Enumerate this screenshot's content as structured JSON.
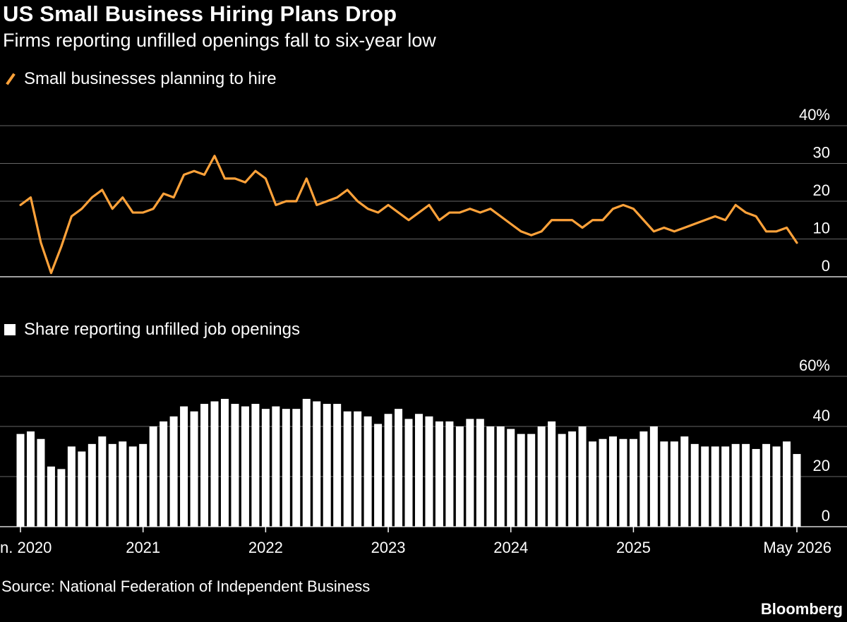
{
  "title": "US Small Business Hiring Plans Drop",
  "subtitle": "Firms reporting unfilled openings fall to six-year low",
  "source": "Source: National Federation of Independent Business",
  "brand": "Bloomberg",
  "colors": {
    "background": "#000000",
    "line": "#ffa23a",
    "bars": "#ffffff",
    "grid": "#666666"
  },
  "chart_data": [
    {
      "type": "line",
      "legend": "Small businesses planning to hire",
      "legend_icon": "line-swatch-icon",
      "unit": "%",
      "ylim": [
        0,
        40
      ],
      "y_ticks": [
        0,
        10,
        20,
        30,
        40
      ],
      "y_tick_labels": [
        "0",
        "10",
        "20",
        "30",
        "40%"
      ],
      "grid": true,
      "x_range": [
        "2020-01",
        "2026-05"
      ],
      "x": [
        "2020-01",
        "2020-02",
        "2020-03",
        "2020-04",
        "2020-05",
        "2020-06",
        "2020-07",
        "2020-08",
        "2020-09",
        "2020-10",
        "2020-11",
        "2020-12",
        "2021-01",
        "2021-02",
        "2021-03",
        "2021-04",
        "2021-05",
        "2021-06",
        "2021-07",
        "2021-08",
        "2021-09",
        "2021-10",
        "2021-11",
        "2021-12",
        "2022-01",
        "2022-02",
        "2022-03",
        "2022-04",
        "2022-05",
        "2022-06",
        "2022-07",
        "2022-08",
        "2022-09",
        "2022-10",
        "2022-11",
        "2022-12",
        "2023-01",
        "2023-02",
        "2023-03",
        "2023-04",
        "2023-05",
        "2023-06",
        "2023-07",
        "2023-08",
        "2023-09",
        "2023-10",
        "2023-11",
        "2023-12",
        "2024-01",
        "2024-02",
        "2024-03",
        "2024-04",
        "2024-05",
        "2024-06",
        "2024-07",
        "2024-08",
        "2024-09",
        "2024-10",
        "2024-11",
        "2024-12",
        "2025-01",
        "2025-02",
        "2025-03",
        "2025-04",
        "2025-05",
        "2025-06",
        "2025-07",
        "2025-08",
        "2025-09",
        "2025-10",
        "2025-11",
        "2025-12",
        "2026-01",
        "2026-02",
        "2026-03",
        "2026-04",
        "2026-05"
      ],
      "values": [
        19,
        21,
        9,
        1,
        8,
        16,
        18,
        21,
        23,
        18,
        21,
        17,
        17,
        18,
        22,
        21,
        27,
        28,
        27,
        32,
        26,
        26,
        25,
        28,
        26,
        19,
        20,
        20,
        26,
        19,
        20,
        21,
        23,
        20,
        18,
        17,
        19,
        17,
        15,
        17,
        19,
        15,
        17,
        17,
        18,
        17,
        18,
        16,
        14,
        12,
        11,
        12,
        15,
        15,
        15,
        13,
        15,
        15,
        18,
        19,
        18,
        15,
        12,
        13,
        12,
        13,
        14,
        15,
        16,
        15,
        19,
        17,
        16,
        12,
        12,
        13,
        9
      ]
    },
    {
      "type": "bar",
      "legend": "Share reporting unfilled job openings",
      "legend_icon": "bar-swatch-icon",
      "unit": "%",
      "ylim": [
        0,
        60
      ],
      "y_ticks": [
        0,
        20,
        40,
        60
      ],
      "y_tick_labels": [
        "0",
        "20",
        "40",
        "60%"
      ],
      "grid": true,
      "x_range": [
        "2020-01",
        "2026-05"
      ],
      "values": [
        37,
        38,
        35,
        24,
        23,
        32,
        30,
        33,
        36,
        33,
        34,
        32,
        33,
        40,
        42,
        44,
        48,
        46,
        49,
        50,
        51,
        49,
        48,
        49,
        47,
        48,
        47,
        47,
        51,
        50,
        49,
        49,
        46,
        46,
        44,
        41,
        45,
        47,
        43,
        45,
        44,
        42,
        42,
        40,
        43,
        43,
        40,
        40,
        39,
        37,
        37,
        40,
        42,
        37,
        38,
        40,
        34,
        35,
        36,
        35,
        35,
        38,
        40,
        34,
        34,
        36,
        33,
        32,
        32,
        32,
        33,
        33,
        31,
        33,
        32,
        34,
        29
      ],
      "x_tick_labels": [
        {
          "date": "2020-01",
          "label": "n. 2020"
        },
        {
          "date": "2021-01",
          "label": "2021"
        },
        {
          "date": "2022-01",
          "label": "2022"
        },
        {
          "date": "2023-01",
          "label": "2023"
        },
        {
          "date": "2024-01",
          "label": "2024"
        },
        {
          "date": "2025-01",
          "label": "2025"
        },
        {
          "date": "2026-05",
          "label": "May 2026"
        }
      ]
    }
  ]
}
